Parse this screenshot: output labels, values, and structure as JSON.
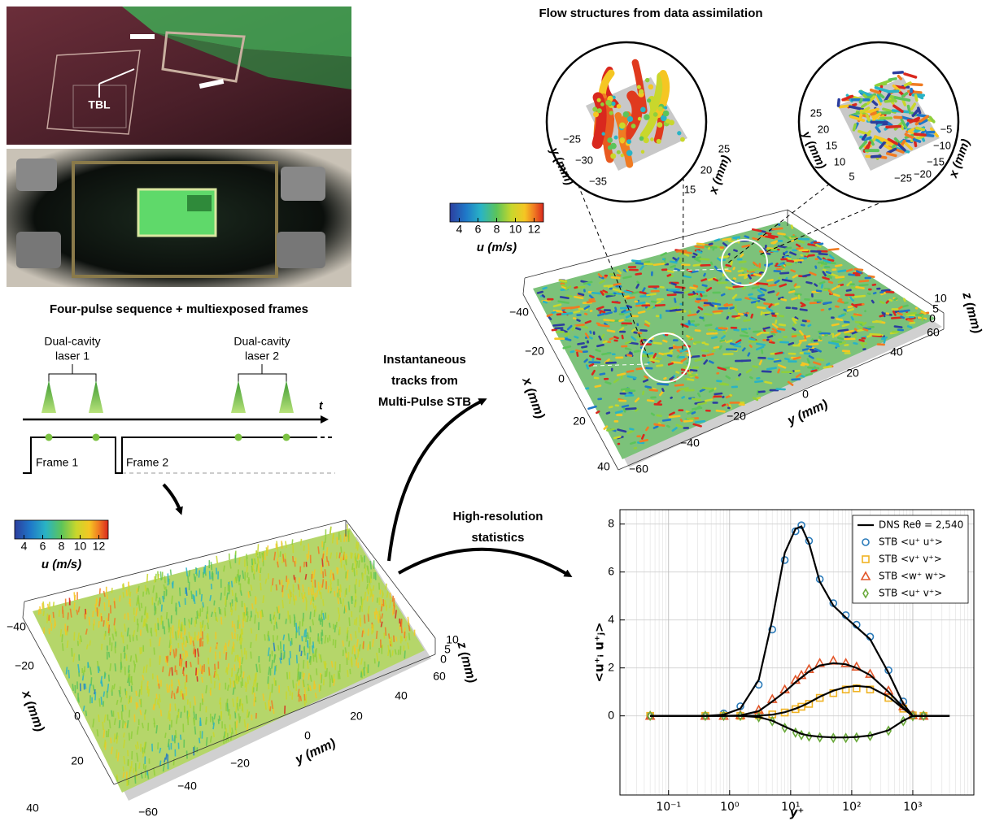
{
  "photos": {
    "tbl_label": "TBL"
  },
  "timing": {
    "title": "Four-pulse sequence + multiexposed frames",
    "laser1": [
      "Dual-cavity",
      "laser 1"
    ],
    "laser2": [
      "Dual-cavity",
      "laser 2"
    ],
    "time_label": "t",
    "frame1": "Frame 1",
    "frame2": "Frame 2"
  },
  "arrows": {
    "tracks": [
      "Instantaneous",
      "tracks from",
      "Multi-Pulse STB"
    ],
    "stats": [
      "High-resolution",
      "statistics"
    ]
  },
  "tracks_volume": {
    "colorbar": {
      "ticks": [
        4,
        6,
        8,
        10,
        12
      ],
      "range": [
        3,
        13
      ],
      "label": "u (m/s)"
    },
    "x_label": "x (mm)",
    "x_ticks": [
      "−40",
      "−20",
      "0",
      "20",
      "40"
    ],
    "y_label": "y (mm)",
    "y_ticks": [
      "−60",
      "−40",
      "−20",
      "0",
      "20",
      "40",
      "60"
    ],
    "z_label": "z (mm)",
    "z_ticks": [
      "0",
      "5",
      "10"
    ]
  },
  "assimilation": {
    "title": "Flow structures from data assimilation",
    "colorbar": {
      "ticks": [
        4,
        6,
        8,
        10,
        12
      ],
      "range": [
        3,
        13
      ],
      "label": "u (m/s)"
    },
    "x_label": "x (mm)",
    "x_ticks": [
      "−40",
      "−20",
      "0",
      "20",
      "40"
    ],
    "y_label": "y (mm)",
    "y_ticks": [
      "−60",
      "−40",
      "−20",
      "0",
      "20",
      "40",
      "60"
    ],
    "z_label": "z (mm)",
    "z_ticks": [
      "0",
      "5",
      "10"
    ],
    "zoom_left": {
      "y_label": "y (mm)",
      "y_ticks": [
        "−25",
        "−30",
        "−35"
      ],
      "x_label": "x (mm)",
      "x_ticks": [
        "25",
        "20",
        "15"
      ]
    },
    "zoom_right": {
      "y_label": "y (mm)",
      "y_ticks": [
        "25",
        "20",
        "15",
        "10",
        "5"
      ],
      "x_label": "x (mm)",
      "x_ticks": [
        "−5",
        "−10",
        "−15",
        "−20",
        "−25"
      ]
    }
  },
  "chart_data": {
    "type": "line",
    "x_label": "y⁺",
    "y_label": "<u⁺ᵢ u⁺ⱼ>",
    "log_x": true,
    "grid": true,
    "legend": "upper right",
    "xlim": [
      0.016,
      10000
    ],
    "ylim": [
      -3.3,
      8.6
    ],
    "xticks": [
      {
        "value": 0.1,
        "label": "10⁻¹"
      },
      {
        "value": 1,
        "label": "10⁰"
      },
      {
        "value": 10,
        "label": "10¹"
      },
      {
        "value": 100,
        "label": "10²"
      },
      {
        "value": 1000,
        "label": "10³"
      }
    ],
    "yticks": [
      0,
      2,
      4,
      6,
      8
    ],
    "x": [
      0.05,
      0.4,
      0.8,
      1.5,
      3,
      5,
      8,
      12,
      15,
      20,
      30,
      50,
      80,
      120,
      200,
      400,
      700,
      1000,
      1500,
      4000
    ],
    "reference": {
      "name": "DNS Reθ = 2,540",
      "color": "#000000",
      "curves": [
        [
          0,
          0,
          0.05,
          0.3,
          1.5,
          4,
          6.8,
          7.8,
          7.9,
          7.2,
          5.6,
          4.6,
          4.1,
          3.7,
          3.2,
          1.8,
          0.5,
          0,
          0,
          0
        ],
        [
          0,
          0,
          0,
          0,
          0.01,
          0.05,
          0.15,
          0.3,
          0.4,
          0.55,
          0.8,
          1.05,
          1.2,
          1.25,
          1.2,
          0.8,
          0.3,
          0,
          0,
          0
        ],
        [
          0,
          0,
          0,
          0.02,
          0.2,
          0.6,
          1.0,
          1.4,
          1.6,
          1.85,
          2.1,
          2.2,
          2.15,
          2.0,
          1.7,
          1.0,
          0.35,
          0,
          0,
          0
        ],
        [
          0,
          0,
          0,
          0,
          -0.05,
          -0.2,
          -0.45,
          -0.65,
          -0.75,
          -0.82,
          -0.87,
          -0.9,
          -0.9,
          -0.88,
          -0.82,
          -0.6,
          -0.2,
          0,
          0,
          0
        ]
      ]
    },
    "series": [
      {
        "name": "STB <u⁺ u⁺>",
        "color": "#2b7bba",
        "marker": "circle",
        "values": [
          0,
          0,
          0.1,
          0.4,
          1.3,
          3.6,
          6.5,
          7.7,
          7.95,
          7.3,
          5.7,
          4.7,
          4.2,
          3.8,
          3.3,
          1.9,
          0.6,
          0.05,
          0,
          null
        ]
      },
      {
        "name": "STB <v⁺ v⁺>",
        "color": "#f0b323",
        "marker": "square",
        "values": [
          0,
          0,
          0,
          0,
          0.02,
          0.06,
          0.14,
          0.28,
          0.38,
          0.5,
          0.75,
          0.95,
          1.1,
          1.15,
          1.1,
          0.75,
          0.3,
          0.02,
          0,
          null
        ]
      },
      {
        "name": "STB <w⁺ w⁺>",
        "color": "#e2562a",
        "marker": "triangle",
        "values": [
          0,
          0,
          0,
          0.03,
          0.25,
          0.7,
          1.1,
          1.5,
          1.7,
          1.95,
          2.2,
          2.3,
          2.2,
          2.05,
          1.75,
          1.05,
          0.4,
          0.03,
          0,
          null
        ]
      },
      {
        "name": "STB <u⁺ v⁺>",
        "color": "#6aaa3a",
        "marker": "diamond",
        "values": [
          0,
          0,
          0,
          0,
          -0.06,
          -0.22,
          -0.5,
          -0.7,
          -0.8,
          -0.86,
          -0.9,
          -0.92,
          -0.92,
          -0.9,
          -0.84,
          -0.62,
          -0.22,
          -0.02,
          0,
          null
        ]
      }
    ]
  }
}
